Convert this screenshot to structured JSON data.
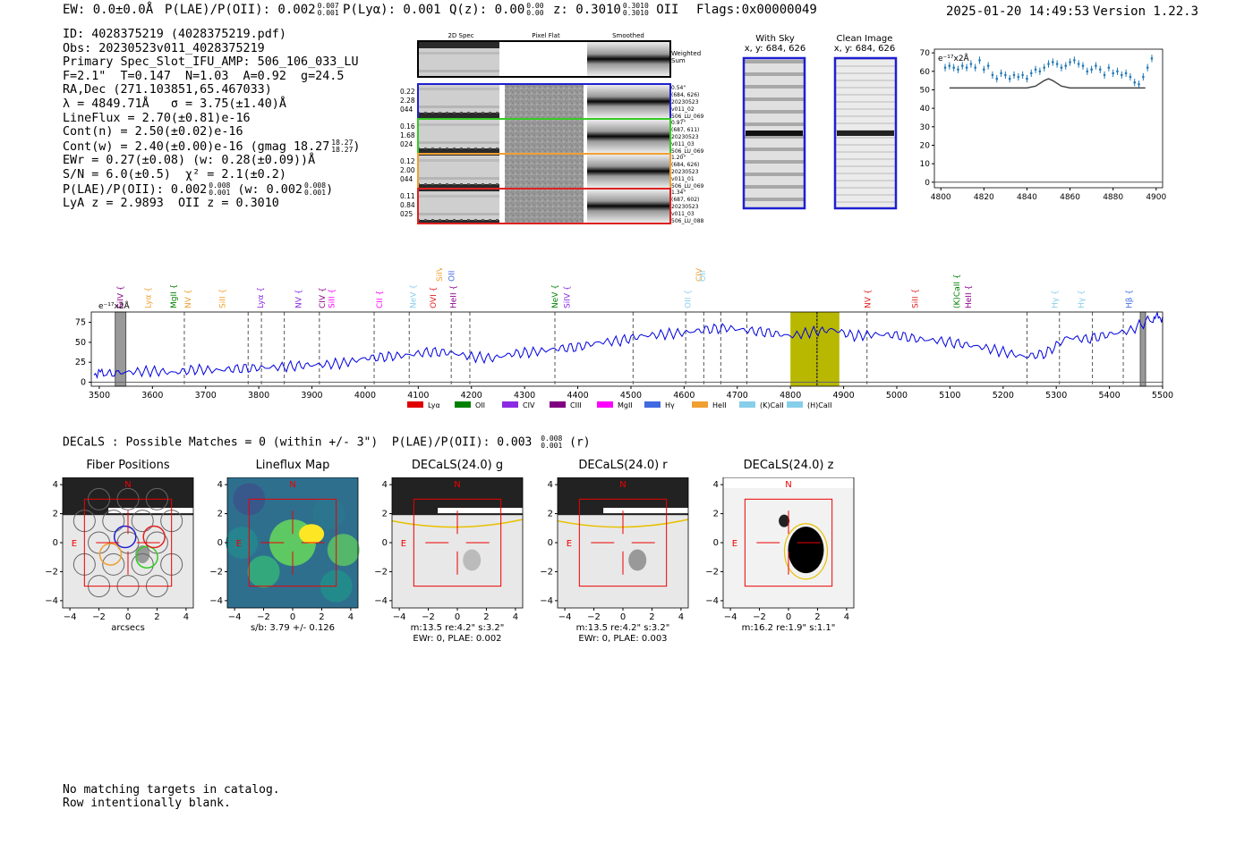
{
  "header": {
    "ew": "EW: 0.0±0.0Å",
    "plae_label": "P(LAE)/P(OII): 0.002",
    "plae_hi": "0.007",
    "plae_lo": "0.001",
    "plya": "P(Lyα): 0.001",
    "qz_label": "Q(z): 0.00",
    "qz_hi": "0.00",
    "qz_lo": "0.00",
    "z_label": "z: 0.3010",
    "z_hi": "0.3010",
    "z_lo": "0.3010",
    "z_line": "OII",
    "flags": "Flags:0x00000049",
    "timestamp": "2025-01-20 14:49:53",
    "version": "Version 1.22.3"
  },
  "info": {
    "id": "ID: 4028375219 (4028375219.pdf)",
    "obs": "Obs: 20230523v011_4028375219",
    "primary": "Primary Spec_Slot_IFU_AMP: 506_106_033_LU",
    "fit": "F=2.1\"  T=0.147  N=1.03  A=0.92  g=24.5",
    "radec": "RA,Dec (271.103851,65.467033)",
    "lambda": "λ = 4849.71Å   σ = 3.75(±1.40)Å",
    "lineflux": "LineFlux = 2.70(±0.81)e-16",
    "contn": "Cont(n) = 2.50(±0.02)e-16",
    "contw": "Cont(w) = 2.40(±0.00)e-16 (gmag 18.27",
    "contw_hi": "18.27",
    "contw_lo": "18.27",
    "contw_end": ")",
    "ewr": "EWr = 0.27(±0.08) (w: 0.28(±0.09))Å",
    "sn": "S/N = 6.0(±0.5)  χ² = 2.1(±0.2)",
    "plae": "P(LAE)/P(OII): 0.002",
    "plae_hi": "0.008",
    "plae_lo": "0.001",
    "plae_w": " (w: 0.002",
    "plae_w_hi": "0.008",
    "plae_w_lo": "0.001",
    "plae_end": ")",
    "lyaz": "LyA z = 2.9893  OII z = 0.3010"
  },
  "cutouts": {
    "col_headers": [
      "2D Spec",
      "Pixel Flat",
      "Smoothed"
    ],
    "weighted_sum": [
      "Weighted",
      "Sum"
    ],
    "rows": [
      {
        "color": "#1f1fd0",
        "left": [
          "0.22",
          "2.28",
          "044"
        ],
        "right": [
          "0.54\"",
          "(684, 626)",
          "20230523",
          "v011_02",
          "506_LU_069"
        ]
      },
      {
        "color": "#33cc22",
        "left": [
          "0.16",
          "1.68",
          "024"
        ],
        "right": [
          "0.97\"",
          "(687, 611)",
          "20230523",
          "v011_03",
          "506_LU_069"
        ]
      },
      {
        "color": "#f0a030",
        "left": [
          "0.12",
          "2.00",
          "044"
        ],
        "right": [
          "1.20\"",
          "(684, 626)",
          "20230523",
          "v011_01",
          "506_LU_069"
        ]
      },
      {
        "color": "#e02020",
        "left": [
          "0.11",
          "0.84",
          "025"
        ],
        "right": [
          "1.34\"",
          "(687, 602)",
          "20230523",
          "v011_03",
          "506_LU_088"
        ]
      }
    ]
  },
  "with_sky": {
    "title": "With Sky",
    "coords": "x, y: 684, 626"
  },
  "clean_image": {
    "title": "Clean Image",
    "coords": "x, y: 684, 626"
  },
  "zoom_spec_unit": "e⁻¹⁷x2Å",
  "full_spec_unit": "e⁻¹⁷x2Å",
  "line_labels": [
    {
      "w": 3545,
      "t": "SiIV",
      "c": "#8b008b"
    },
    {
      "w": 3597,
      "t": "Lyα",
      "c": "#f0a030"
    },
    {
      "w": 3645,
      "t": "MgII",
      "c": "#008000"
    },
    {
      "w": 3672,
      "t": "NV",
      "c": "#f0a030"
    },
    {
      "w": 3737,
      "t": "SiII",
      "c": "#f0a030"
    },
    {
      "w": 3808,
      "t": "Lyα",
      "c": "#8a2be2"
    },
    {
      "w": 3880,
      "t": "NV",
      "c": "#8a2be2"
    },
    {
      "w": 3924,
      "t": "CIV",
      "c": "#8b008b"
    },
    {
      "w": 3942,
      "t": "SiII",
      "c": "#ff00ff"
    },
    {
      "w": 4032,
      "t": "CII",
      "c": "#ff00ff"
    },
    {
      "w": 4095,
      "t": "NeV",
      "c": "#87ceeb"
    },
    {
      "w": 4133,
      "t": "OVI",
      "c": "#e02020"
    },
    {
      "w": 4171,
      "t": "HeII",
      "c": "#8b008b"
    },
    {
      "w": 4145,
      "t": "SiIV",
      "c": "#f0a030"
    },
    {
      "w": 4168,
      "t": "OII",
      "c": "#4169e1"
    },
    {
      "w": 4362,
      "t": "NeV",
      "c": "#008000"
    },
    {
      "w": 4385,
      "t": "SiIV",
      "c": "#8a2be2"
    },
    {
      "w": 4612,
      "t": "OII",
      "c": "#87ceeb"
    },
    {
      "w": 4633,
      "t": "CIV",
      "c": "#f0a030"
    },
    {
      "w": 4640,
      "t": "OII",
      "c": "#87ceeb"
    },
    {
      "w": 4950,
      "t": "NV",
      "c": "#e02020"
    },
    {
      "w": 5040,
      "t": "SiII",
      "c": "#e02020"
    },
    {
      "w": 5118,
      "t": "(K)CaII",
      "c": "#008000"
    },
    {
      "w": 5140,
      "t": "HeII",
      "c": "#8b008b"
    },
    {
      "w": 5302,
      "t": "Hγ",
      "c": "#87ceeb"
    },
    {
      "w": 5352,
      "t": "Hγ",
      "c": "#87ceeb"
    },
    {
      "w": 5442,
      "t": "Hβ",
      "c": "#4169e1"
    }
  ],
  "legend": [
    {
      "label": "Lyα",
      "color": "#e00000"
    },
    {
      "label": "OII",
      "color": "#008000"
    },
    {
      "label": "CIV",
      "color": "#8a2be2"
    },
    {
      "label": "CIII",
      "color": "#800080"
    },
    {
      "label": "MgII",
      "color": "#ff00ff"
    },
    {
      "label": "Hγ",
      "color": "#4169e1"
    },
    {
      "label": "HeII",
      "color": "#f0a030"
    },
    {
      "label": "(K)CaII",
      "color": "#87ceeb"
    },
    {
      "label": "(H)CaII",
      "color": "#87ceeb"
    }
  ],
  "decals_line": {
    "text": "DECaLS : Possible Matches = 0 (within +/- 3\")  P(LAE)/P(OII): 0.003",
    "hi": "0.008",
    "lo": "0.001",
    "end": "(r)"
  },
  "panels": [
    {
      "title": "Fiber Positions",
      "cap1": "arcsecs",
      "cap2": ""
    },
    {
      "title": "Lineflux Map",
      "cap1": "s/b: 3.79 +/- 0.126",
      "cap2": ""
    },
    {
      "title": "DECaLS(24.0) g",
      "cap1": "m:13.5  re:4.2\"  s:3.2\"",
      "cap2": "EWr: 0, PLAE: 0.002"
    },
    {
      "title": "DECaLS(24.0) r",
      "cap1": "m:13.5  re:4.2\"  s:3.2\"",
      "cap2": "EWr: 0, PLAE: 0.003"
    },
    {
      "title": "DECaLS(24.0) z",
      "cap1": "m:16.2  re:1.9\"  s:1.1\"",
      "cap2": ""
    }
  ],
  "panel_labels": {
    "north": "N",
    "east": "E"
  },
  "footer": {
    "line1": "No matching targets in catalog.",
    "line2": "Row intentionally blank."
  },
  "chart_data": [
    {
      "type": "scatter",
      "title": "",
      "xlabel": "",
      "ylabel": "",
      "xlim": [
        4797,
        4903
      ],
      "ylim": [
        -3,
        72
      ],
      "xticks": [
        4800,
        4820,
        4840,
        4860,
        4880,
        4900
      ],
      "yticks": [
        0,
        10,
        20,
        30,
        40,
        50,
        60,
        70
      ],
      "unit": "e⁻¹⁷x2Å",
      "series": [
        {
          "name": "data",
          "x": [
            4802,
            4804,
            4806,
            4808,
            4810,
            4812,
            4814,
            4816,
            4818,
            4820,
            4822,
            4824,
            4826,
            4828,
            4830,
            4832,
            4834,
            4836,
            4838,
            4840,
            4842,
            4844,
            4846,
            4848,
            4850,
            4852,
            4854,
            4856,
            4858,
            4860,
            4862,
            4864,
            4866,
            4868,
            4870,
            4872,
            4874,
            4876,
            4878,
            4880,
            4882,
            4884,
            4886,
            4888,
            4890,
            4892,
            4894,
            4896,
            4898
          ],
          "y": [
            62,
            63,
            62,
            61,
            63,
            62,
            64,
            62,
            66,
            61,
            63,
            58,
            56,
            59,
            58,
            56,
            58,
            57,
            58,
            56,
            59,
            61,
            60,
            62,
            64,
            65,
            64,
            62,
            63,
            65,
            66,
            64,
            63,
            60,
            61,
            63,
            61,
            58,
            62,
            59,
            60,
            58,
            59,
            57,
            54,
            53,
            57,
            62,
            67
          ]
        },
        {
          "name": "fit",
          "x": [
            4804,
            4840,
            4844,
            4848,
            4850,
            4852,
            4856,
            4860,
            4895
          ],
          "y": [
            51,
            51,
            52,
            55,
            56,
            55,
            52,
            51,
            51
          ]
        }
      ]
    },
    {
      "type": "line",
      "title": "",
      "xlabel": "",
      "ylabel": "",
      "xlim": [
        3485,
        5500
      ],
      "ylim": [
        -5,
        88
      ],
      "xticks": [
        3500,
        3600,
        3700,
        3800,
        3900,
        4000,
        4100,
        4200,
        4300,
        4400,
        4500,
        4600,
        4700,
        4800,
        4900,
        5000,
        5100,
        5200,
        5300,
        5400,
        5500
      ],
      "yticks": [
        0,
        25,
        50,
        75
      ],
      "unit": "e⁻¹⁷x2Å",
      "highlight_band": [
        4800,
        4892
      ],
      "emission_line": 4850,
      "masked_bands": [
        [
          3530,
          3550
        ],
        [
          5458,
          5468
        ]
      ],
      "dashed_lines": [
        3660,
        3780,
        3805,
        3848,
        3914,
        4017,
        4083,
        4162,
        4197,
        4357,
        4504,
        4603,
        4637,
        4669,
        4718,
        4850,
        4944,
        5245,
        5306,
        5368,
        5426
      ],
      "series": [
        {
          "name": "spectrum",
          "x": [
            3490,
            3520,
            3560,
            3600,
            3640,
            3680,
            3720,
            3760,
            3800,
            3840,
            3880,
            3920,
            3960,
            4000,
            4040,
            4080,
            4120,
            4160,
            4200,
            4240,
            4280,
            4320,
            4360,
            4400,
            4440,
            4480,
            4520,
            4560,
            4600,
            4640,
            4680,
            4720,
            4760,
            4800,
            4840,
            4880,
            4920,
            4960,
            5000,
            5040,
            5080,
            5120,
            5160,
            5200,
            5240,
            5280,
            5320,
            5360,
            5400,
            5440,
            5480,
            5500
          ],
          "y": [
            12,
            11,
            13,
            14,
            12,
            16,
            15,
            17,
            18,
            19,
            21,
            22,
            24,
            30,
            32,
            34,
            38,
            37,
            32,
            30,
            36,
            38,
            42,
            44,
            50,
            52,
            58,
            60,
            62,
            66,
            68,
            65,
            62,
            58,
            63,
            66,
            58,
            60,
            59,
            54,
            52,
            48,
            44,
            38,
            32,
            36,
            56,
            54,
            60,
            65,
            80,
            82
          ]
        }
      ]
    }
  ]
}
